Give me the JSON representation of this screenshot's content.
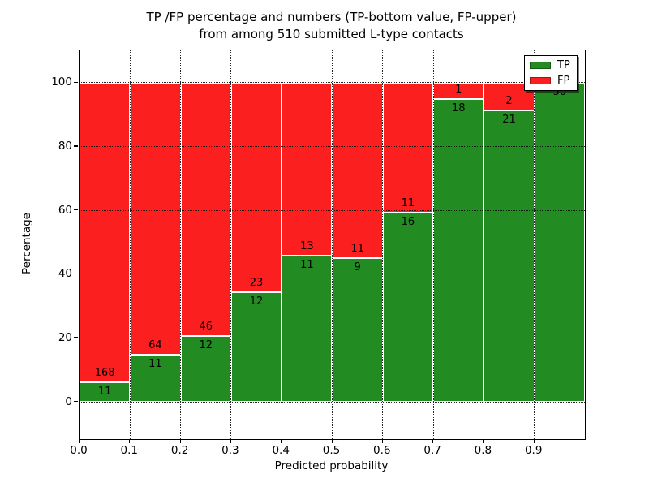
{
  "figure": {
    "title_line1": "TP /FP percentage and numbers (TP-bottom value, FP-upper)",
    "title_line2": "from among 510 submitted L-type contacts",
    "xlabel": "Predicted probability",
    "ylabel": "Percentage"
  },
  "legend": {
    "position": "upper right",
    "items": [
      {
        "label": "TP",
        "color": "#228b22"
      },
      {
        "label": "FP",
        "color": "#fb1f1f"
      }
    ]
  },
  "chart_data": {
    "type": "bar",
    "stacked": true,
    "normalized": "percent",
    "title": "TP /FP percentage and numbers (TP-bottom value, FP-upper) from among 510 submitted L-type contacts",
    "xlabel": "Predicted probability",
    "ylabel": "Percentage",
    "total_submitted": 510,
    "bin_width": 0.1,
    "grid": true,
    "legend_position": "upper right",
    "xlim": [
      0.0,
      1.0
    ],
    "ylim": [
      -12,
      110
    ],
    "x_tick_labels": [
      "0.0",
      "0.1",
      "0.2",
      "0.3",
      "0.4",
      "0.5",
      "0.6",
      "0.7",
      "0.8",
      "0.9"
    ],
    "y_tick_values": [
      0,
      20,
      40,
      60,
      80,
      100
    ],
    "y_tick_labels": [
      "0",
      "20",
      "40",
      "60",
      "80",
      "100"
    ],
    "categories": [
      "0.0-0.1",
      "0.1-0.2",
      "0.2-0.3",
      "0.3-0.4",
      "0.4-0.5",
      "0.5-0.6",
      "0.6-0.7",
      "0.7-0.8",
      "0.8-0.9",
      "0.9-1.0"
    ],
    "series": [
      {
        "name": "TP",
        "color": "#228b22",
        "counts": [
          11,
          11,
          12,
          12,
          11,
          9,
          16,
          18,
          21,
          50
        ]
      },
      {
        "name": "FP",
        "color": "#fb1f1f",
        "counts": [
          168,
          64,
          46,
          23,
          13,
          11,
          11,
          1,
          2,
          0
        ]
      }
    ],
    "tp_percent": [
      6.1,
      14.7,
      20.7,
      34.3,
      45.8,
      45.0,
      59.3,
      94.7,
      91.3,
      100.0
    ]
  },
  "colors": {
    "tp": "#228b22",
    "fp": "#fb1f1f",
    "grid": "#000000",
    "frame": "#000000",
    "background": "#ffffff"
  }
}
